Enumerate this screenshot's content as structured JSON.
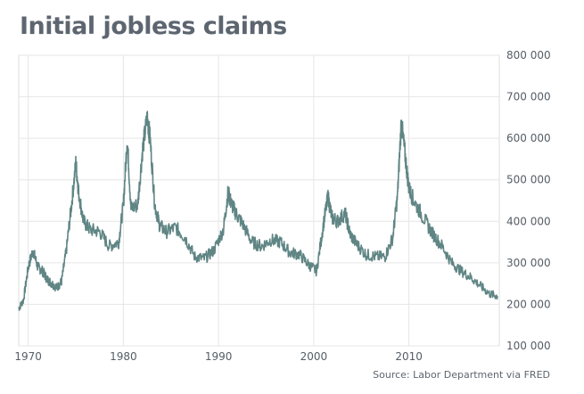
{
  "chart_data": {
    "type": "line",
    "title": "Initial jobless claims",
    "source": "Source: Labor Department via FRED",
    "xlabel": "",
    "ylabel": "",
    "xlim": [
      1969.0,
      2019.5
    ],
    "ylim": [
      100000,
      800000
    ],
    "x_ticks": [
      1970,
      1980,
      1990,
      2000,
      2010
    ],
    "y_ticks": [
      100000,
      200000,
      300000,
      400000,
      500000,
      600000,
      700000,
      800000
    ],
    "y_tick_labels": [
      "100 000",
      "200 000",
      "300 000",
      "400 000",
      "500 000",
      "600 000",
      "700 000",
      "800 000"
    ],
    "x_tick_labels": [
      "1970",
      "1980",
      "1990",
      "2000",
      "2010"
    ],
    "grid": true,
    "line_color": "#5f8584",
    "series": [
      {
        "x": [
          1969.0,
          1969.5,
          1970.0,
          1970.5,
          1971.0,
          1971.5,
          1972.0,
          1972.5,
          1973.0,
          1973.5,
          1974.0,
          1974.5,
          1975.0,
          1975.3,
          1975.8,
          1976.5,
          1977.5,
          1978.5,
          1979.5,
          1980.0,
          1980.4,
          1980.8,
          1981.5,
          1982.0,
          1982.5,
          1982.8,
          1983.3,
          1983.8,
          1984.5,
          1985.5,
          1986.5,
          1987.5,
          1988.5,
          1989.5,
          1990.5,
          1991.0,
          1991.3,
          1991.8,
          1992.5,
          1993.5,
          1994.5,
          1995.5,
          1996.5,
          1997.5,
          1998.5,
          1999.5,
          2000.3,
          2001.0,
          2001.5,
          2001.9,
          2002.5,
          2003.3,
          2003.8,
          2004.5,
          2005.5,
          2006.5,
          2007.5,
          2008.3,
          2008.8,
          2009.2,
          2009.6,
          2010.0,
          2010.5,
          2011.5,
          2012.5,
          2013.5,
          2014.5,
          2015.5,
          2016.5,
          2017.5,
          2018.5,
          2019.3
        ],
        "values": [
          190000,
          210000,
          290000,
          330000,
          290000,
          280000,
          260000,
          250000,
          240000,
          255000,
          330000,
          430000,
          540000,
          470000,
          400000,
          380000,
          375000,
          340000,
          350000,
          440000,
          600000,
          430000,
          440000,
          570000,
          650000,
          600000,
          440000,
          390000,
          375000,
          385000,
          360000,
          315000,
          310000,
          330000,
          380000,
          470000,
          445000,
          420000,
          395000,
          350000,
          340000,
          355000,
          350000,
          325000,
          320000,
          295000,
          280000,
          390000,
          460000,
          410000,
          400000,
          420000,
          370000,
          345000,
          320000,
          315000,
          315000,
          360000,
          460000,
          640000,
          560000,
          480000,
          450000,
          410000,
          370000,
          340000,
          300000,
          280000,
          265000,
          245000,
          225000,
          220000
        ]
      }
    ]
  }
}
